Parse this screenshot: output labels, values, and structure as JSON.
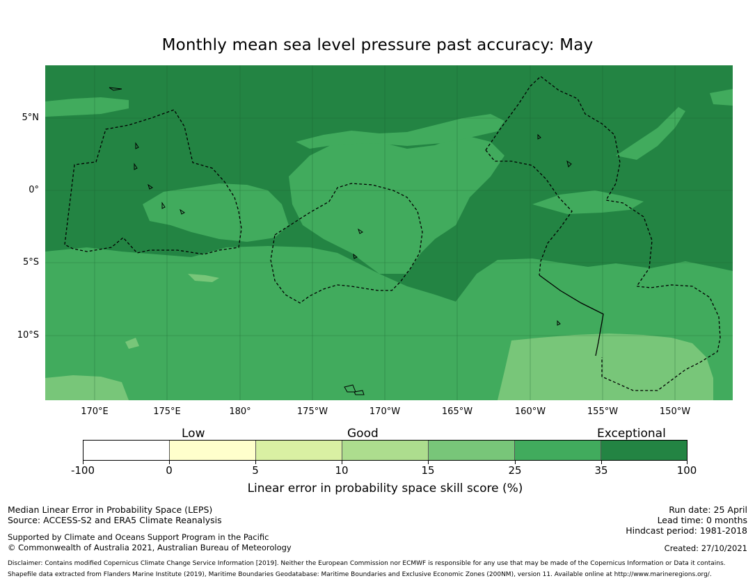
{
  "title": "Monthly mean sea level pressure past accuracy: May",
  "map": {
    "lat_labels": [
      "5°N",
      "0°",
      "5°S",
      "10°S"
    ],
    "lon_labels": [
      "170°E",
      "175°E",
      "180°",
      "175°W",
      "170°W",
      "165°W",
      "160°W",
      "155°W",
      "150°W"
    ],
    "colors": {
      "exceptional": "#238443",
      "good_high": "#41ab5d",
      "good_mid": "#78c679",
      "good_low": "#addd8e",
      "coast": "#000000",
      "grid": "#1a5c2e"
    }
  },
  "legend": {
    "categories": [
      "Low",
      "Good",
      "Exceptional"
    ],
    "ticks": [
      "-100",
      "0",
      "5",
      "10",
      "15",
      "25",
      "35",
      "100"
    ],
    "colors": [
      "#ffffff",
      "#ffffcc",
      "#d9f0a3",
      "#addd8e",
      "#78c679",
      "#41ab5d",
      "#238443"
    ],
    "axis_label": "Linear error in probability space skill score (%)"
  },
  "footer": {
    "left": [
      "Median Linear Error in Probability Space (LEPS)",
      "Source: ACCESS-S2 and ERA5 Climate Reanalysis",
      "Supported by Climate and Oceans Support Program in the Pacific",
      "© Commonwealth of Australia 2021, Australian Bureau of Meteorology"
    ],
    "right": [
      "Run date: 25 April",
      "Lead time: 0 months",
      "Hindcast period: 1981-2018",
      "Created: 27/10/2021"
    ],
    "disclaimer": [
      "Disclaimer: Contains modified Copernicus Climate Change Service Information [2019]. Neither the European Commission nor ECMWF is responsible for any use that may be made of the Copernicus Information or Data it contains.",
      "Shapefile data extracted from Flanders Marine Institute (2019), Maritime Boundaries Geodatabase: Maritime Boundaries and Exclusive Economic Zones (200NM), version 11. Available online at http://www.marineregions.org/."
    ]
  }
}
